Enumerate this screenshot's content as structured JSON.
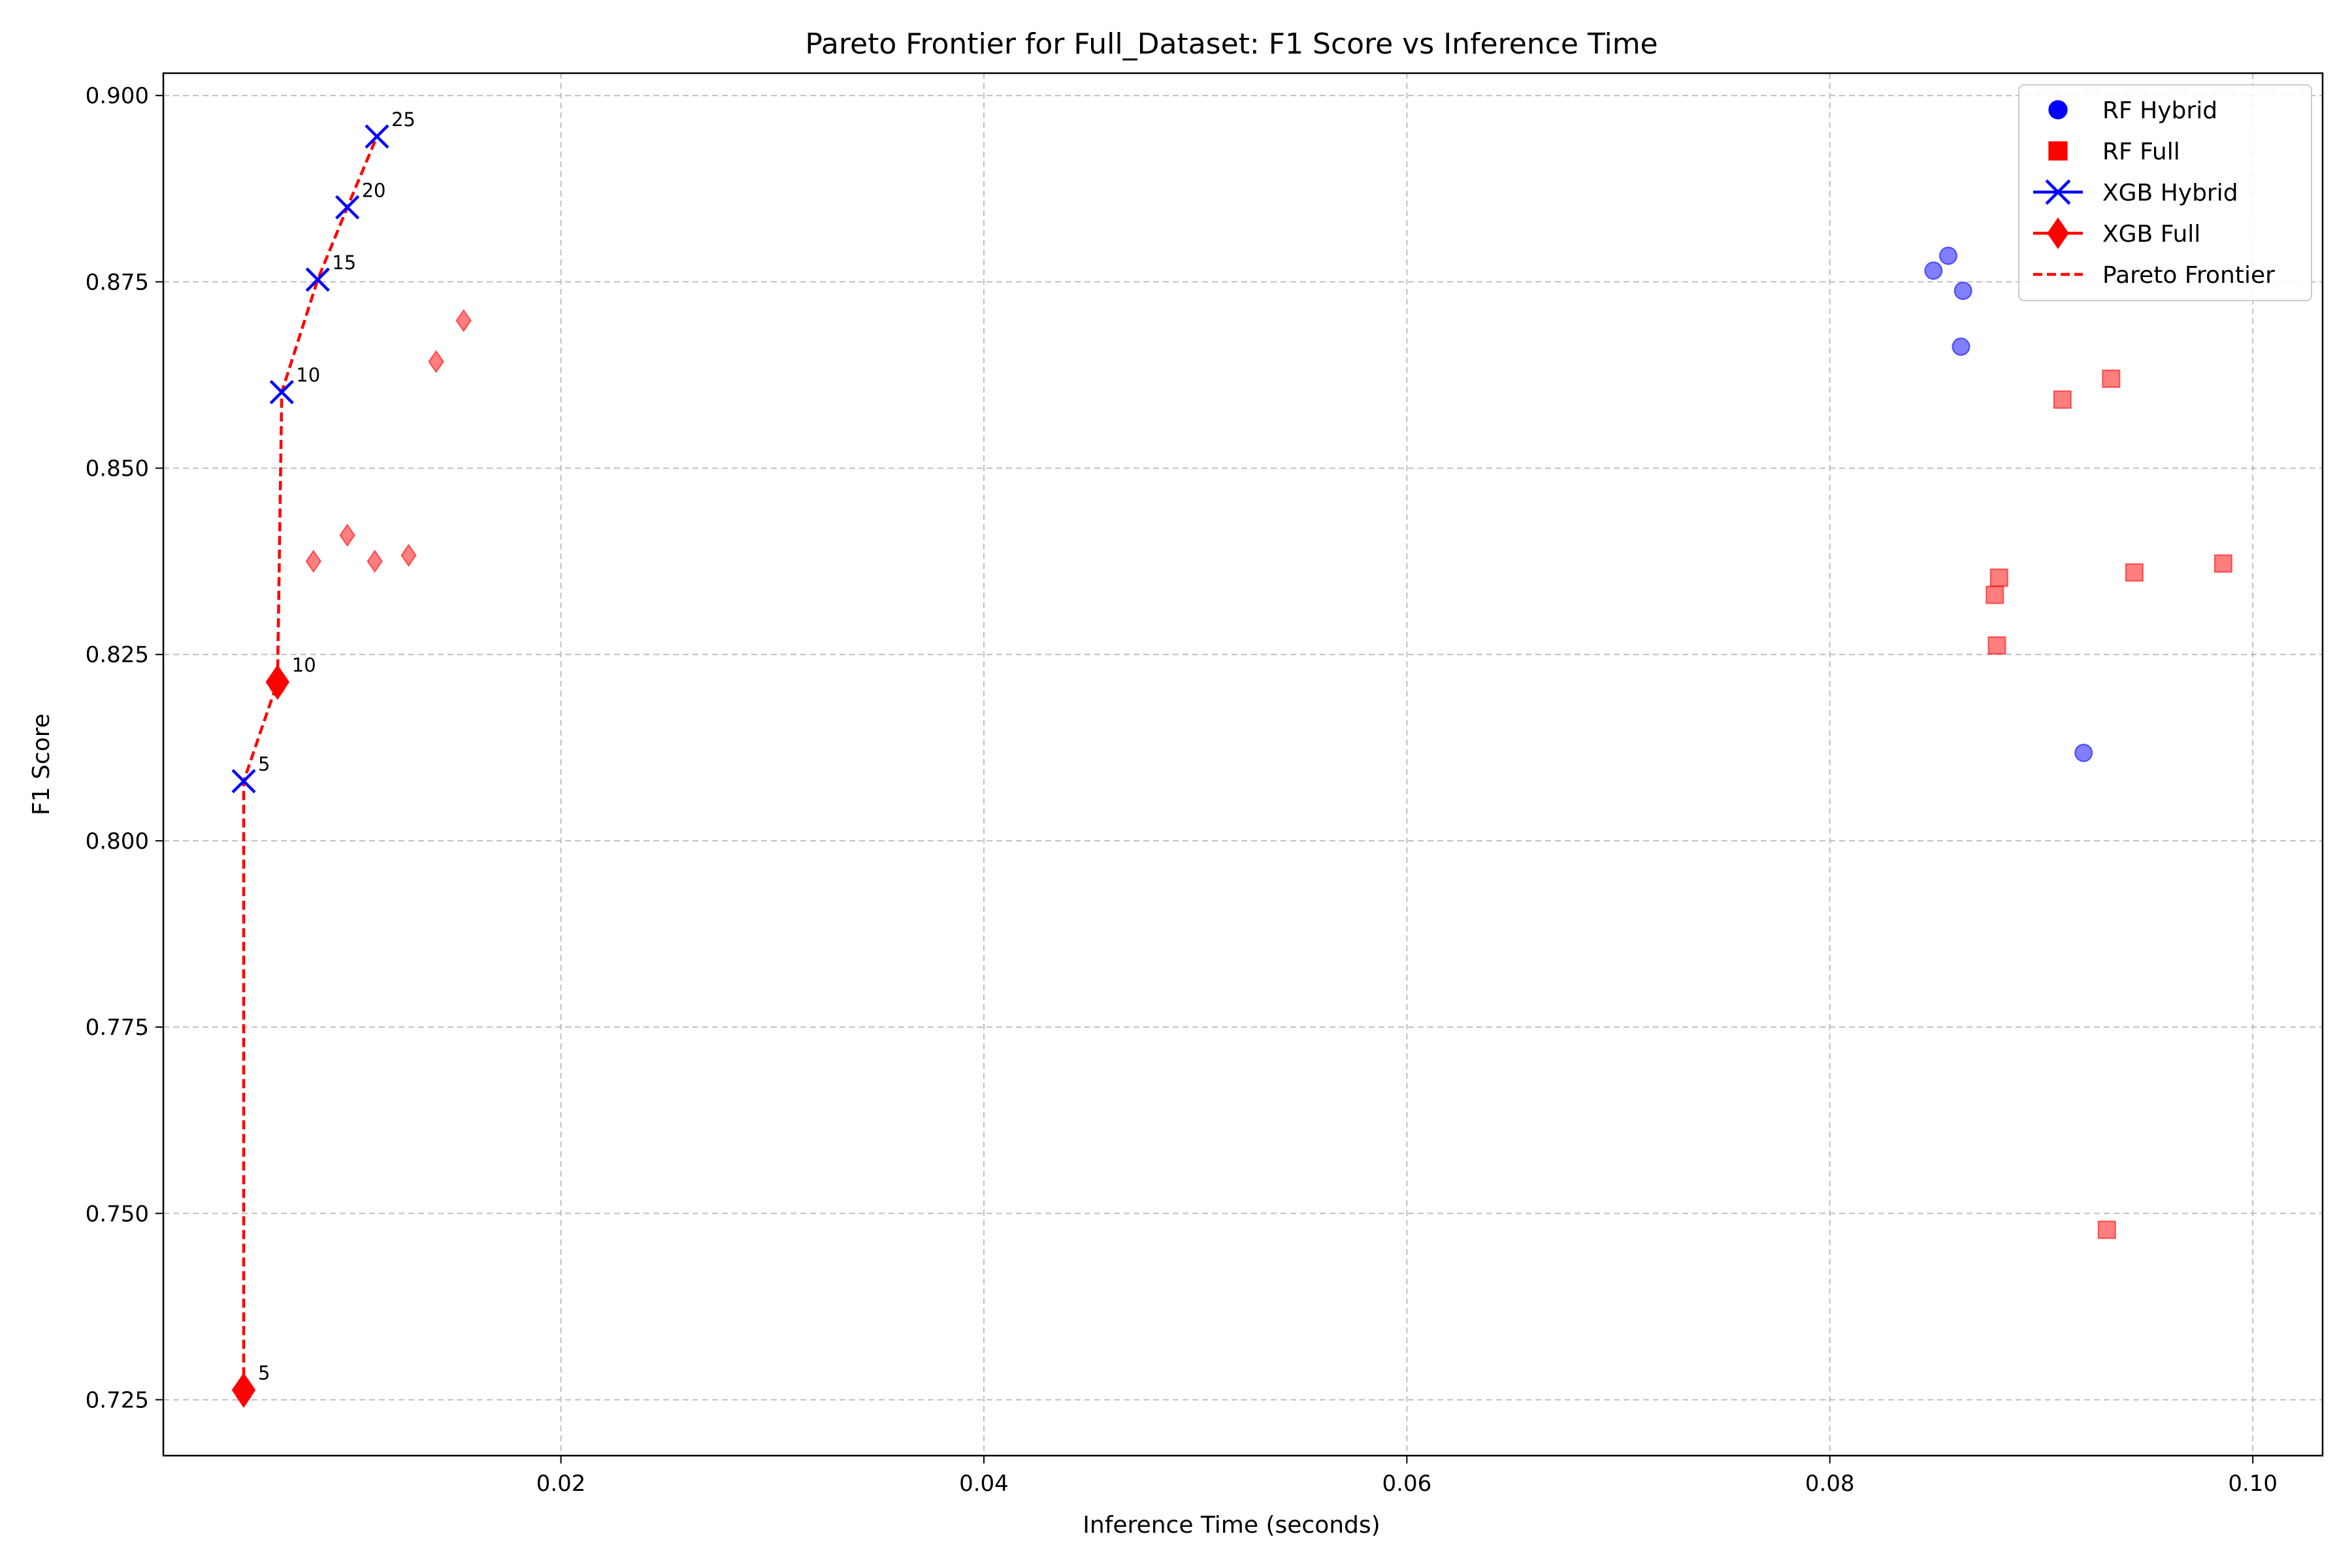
{
  "chart_data": {
    "type": "scatter",
    "title": "Pareto Frontier for Full_Dataset: F1 Score vs Inference Time",
    "xlabel": "Inference Time (seconds)",
    "ylabel": "F1 Score",
    "xlim": [
      0.0012,
      0.1033
    ],
    "ylim": [
      0.7175,
      0.903
    ],
    "xticks": [
      0.02,
      0.04,
      0.06,
      0.08,
      0.1
    ],
    "xtick_labels": [
      "0.02",
      "0.04",
      "0.06",
      "0.08",
      "0.10"
    ],
    "yticks": [
      0.725,
      0.75,
      0.775,
      0.8,
      0.825,
      0.85,
      0.875,
      0.9
    ],
    "ytick_labels": [
      "0.725",
      "0.750",
      "0.775",
      "0.800",
      "0.825",
      "0.850",
      "0.875",
      "0.900"
    ],
    "grid": true,
    "legend_position": "top-right",
    "series": [
      {
        "name": "RF Hybrid",
        "marker": "circle",
        "color": "#0000ff",
        "x": [
          0.0849,
          0.0856,
          0.0863,
          0.0862,
          0.092
        ],
        "y": [
          0.8765,
          0.8785,
          0.8738,
          0.8663,
          0.8118
        ]
      },
      {
        "name": "RF Full",
        "marker": "square",
        "color": "#ff0000",
        "x": [
          0.091,
          0.0933,
          0.088,
          0.0878,
          0.0879,
          0.0944,
          0.0986,
          0.0931
        ],
        "y": [
          0.8592,
          0.862,
          0.8353,
          0.833,
          0.8262,
          0.836,
          0.8372,
          0.7478
        ]
      },
      {
        "name": "XGB Hybrid",
        "marker": "x",
        "color": "#0000ff",
        "x": [
          0.005,
          0.0068,
          0.0085,
          0.0099,
          0.0113
        ],
        "y": [
          0.808,
          0.8602,
          0.8753,
          0.885,
          0.8945
        ],
        "labels": [
          "5",
          "10",
          "15",
          "20",
          "25"
        ]
      },
      {
        "name": "XGB Full",
        "marker": "diamond",
        "color": "#ff0000",
        "x": [
          0.005,
          0.0066,
          0.0083,
          0.0099,
          0.0112,
          0.0128,
          0.0141,
          0.0154
        ],
        "y": [
          0.7263,
          0.8213,
          0.8375,
          0.841,
          0.8375,
          0.8383,
          0.8643,
          0.8698
        ],
        "highlight_labels": [
          "5",
          "10"
        ]
      }
    ],
    "pareto": {
      "name": "Pareto Frontier",
      "color": "#ff0000",
      "x": [
        0.005,
        0.005,
        0.0066,
        0.0068,
        0.0085,
        0.0099,
        0.0113
      ],
      "y": [
        0.7263,
        0.808,
        0.8213,
        0.8602,
        0.8753,
        0.885,
        0.8945
      ]
    }
  }
}
